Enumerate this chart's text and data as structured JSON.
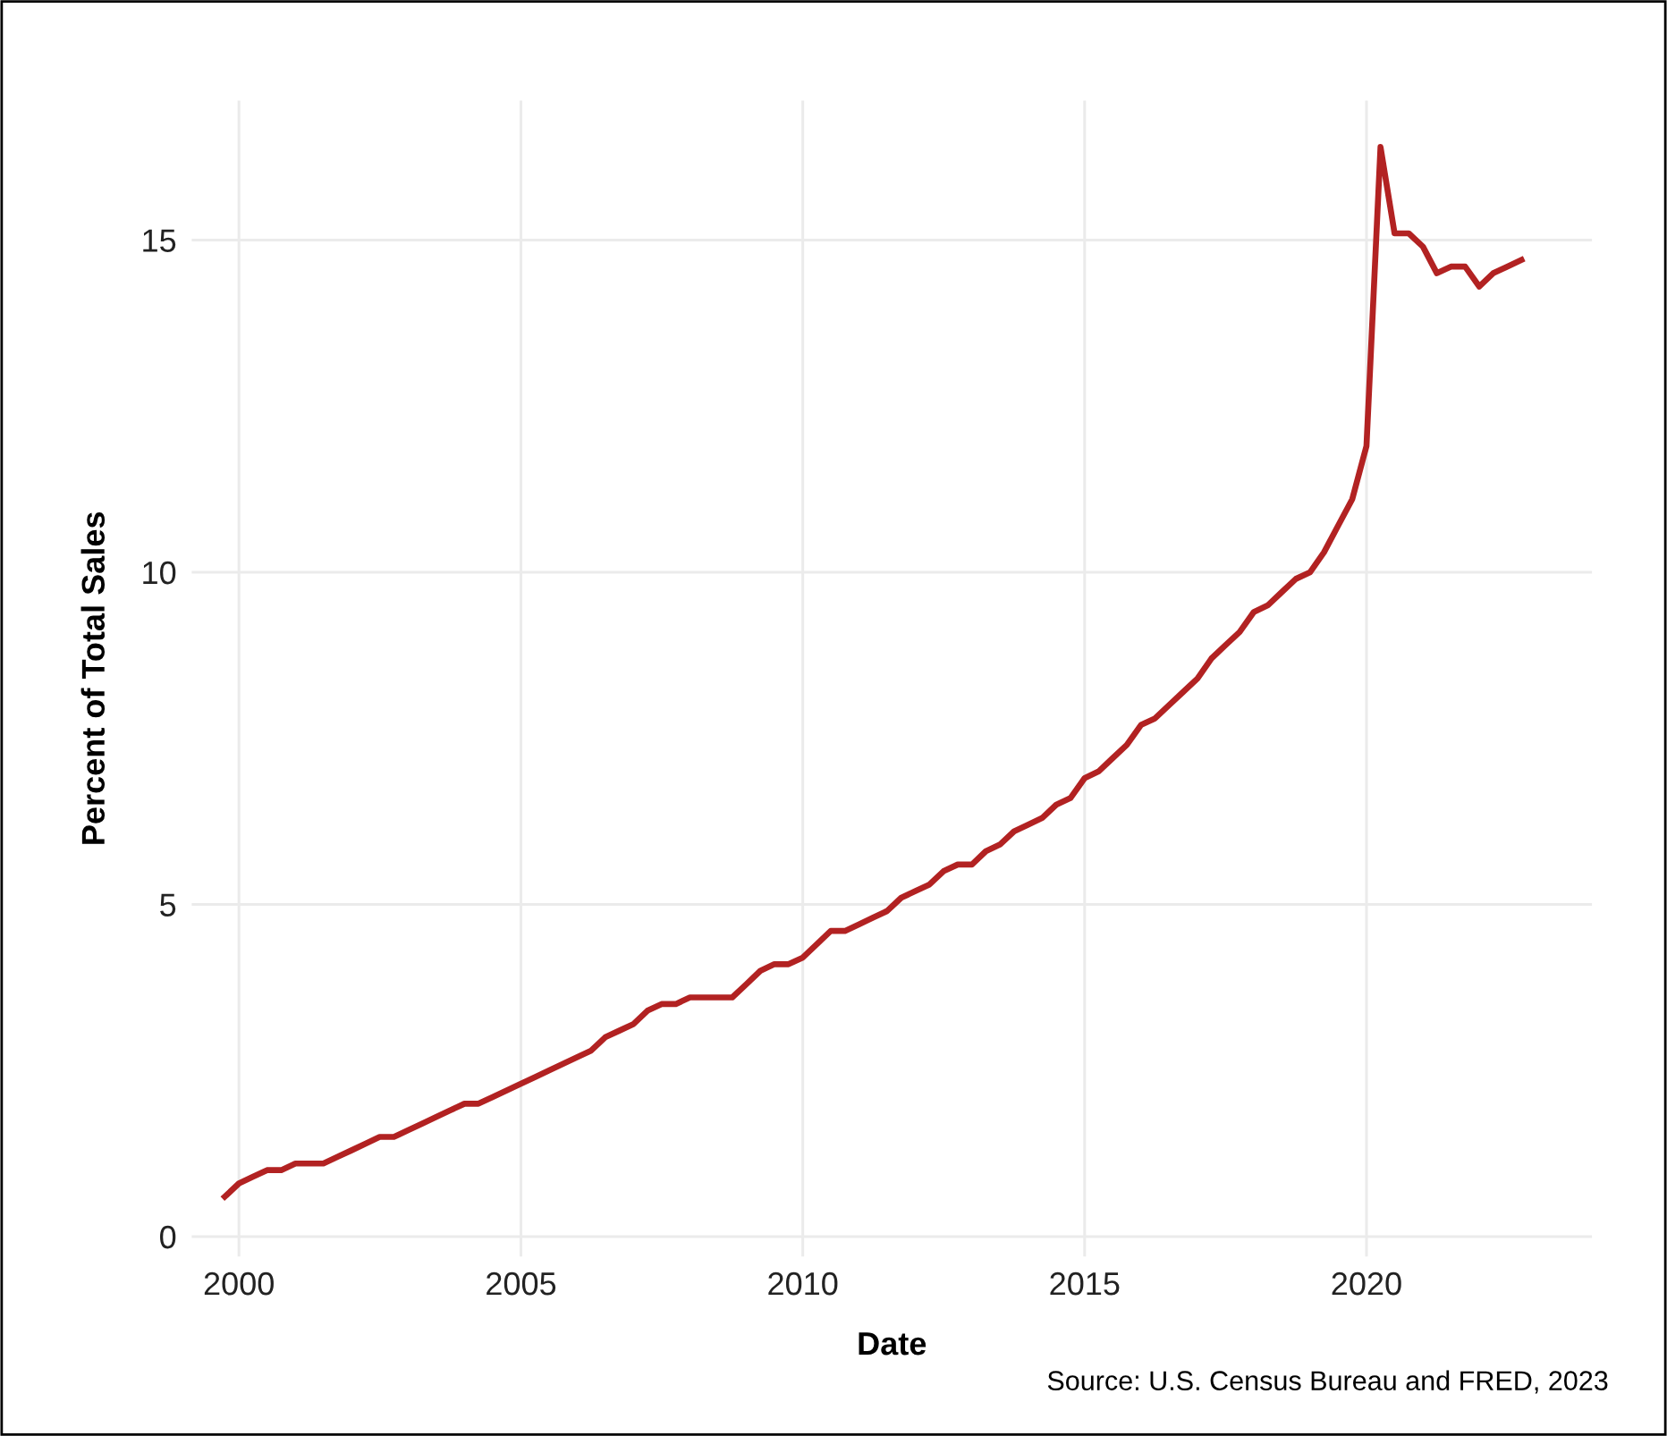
{
  "chart_data": {
    "type": "line",
    "xlabel": "Date",
    "ylabel": "Percent of Total Sales",
    "annotations": [
      "Source: U.S. Census Bureau and FRED, 2023"
    ],
    "x": [
      "1999-10",
      "2000-01",
      "2000-04",
      "2000-07",
      "2000-10",
      "2001-01",
      "2001-04",
      "2001-07",
      "2001-10",
      "2002-01",
      "2002-04",
      "2002-07",
      "2002-10",
      "2003-01",
      "2003-04",
      "2003-07",
      "2003-10",
      "2004-01",
      "2004-04",
      "2004-07",
      "2004-10",
      "2005-01",
      "2005-04",
      "2005-07",
      "2005-10",
      "2006-01",
      "2006-04",
      "2006-07",
      "2006-10",
      "2007-01",
      "2007-04",
      "2007-07",
      "2007-10",
      "2008-01",
      "2008-04",
      "2008-07",
      "2008-10",
      "2009-01",
      "2009-04",
      "2009-07",
      "2009-10",
      "2010-01",
      "2010-04",
      "2010-07",
      "2010-10",
      "2011-01",
      "2011-04",
      "2011-07",
      "2011-10",
      "2012-01",
      "2012-04",
      "2012-07",
      "2012-10",
      "2013-01",
      "2013-04",
      "2013-07",
      "2013-10",
      "2014-01",
      "2014-04",
      "2014-07",
      "2014-10",
      "2015-01",
      "2015-04",
      "2015-07",
      "2015-10",
      "2016-01",
      "2016-04",
      "2016-07",
      "2016-10",
      "2017-01",
      "2017-04",
      "2017-07",
      "2017-10",
      "2018-01",
      "2018-04",
      "2018-07",
      "2018-10",
      "2019-01",
      "2019-04",
      "2019-07",
      "2019-10",
      "2020-01",
      "2020-04",
      "2020-07",
      "2020-10",
      "2021-01",
      "2021-04",
      "2021-07",
      "2021-10",
      "2022-01",
      "2022-04",
      "2022-07",
      "2022-10"
    ],
    "series": [
      {
        "color": "#b22222",
        "values": [
          0.6,
          0.8,
          0.9,
          1.0,
          1.0,
          1.1,
          1.1,
          1.1,
          1.2,
          1.3,
          1.4,
          1.5,
          1.5,
          1.6,
          1.7,
          1.8,
          1.9,
          2.0,
          2.0,
          2.1,
          2.2,
          2.3,
          2.4,
          2.5,
          2.6,
          2.7,
          2.8,
          3.0,
          3.1,
          3.2,
          3.4,
          3.5,
          3.5,
          3.6,
          3.6,
          3.6,
          3.6,
          3.8,
          4.0,
          4.1,
          4.1,
          4.2,
          4.4,
          4.6,
          4.6,
          4.7,
          4.8,
          4.9,
          5.1,
          5.2,
          5.3,
          5.5,
          5.6,
          5.6,
          5.8,
          5.9,
          6.1,
          6.2,
          6.3,
          6.5,
          6.6,
          6.9,
          7.0,
          7.2,
          7.4,
          7.7,
          7.8,
          8.0,
          8.2,
          8.4,
          8.7,
          8.9,
          9.1,
          9.4,
          9.5,
          9.7,
          9.9,
          10.0,
          10.3,
          10.7,
          11.1,
          11.9,
          16.4,
          15.1,
          15.1,
          14.9,
          14.5,
          14.6,
          14.6,
          14.3,
          14.5,
          14.6,
          14.7
        ]
      }
    ],
    "xlim": [
      "1999-03",
      "2024-01"
    ],
    "xticks": [
      {
        "value": "2000-01",
        "label": "2000"
      },
      {
        "value": "2005-01",
        "label": "2005"
      },
      {
        "value": "2010-01",
        "label": "2010"
      },
      {
        "value": "2015-01",
        "label": "2015"
      },
      {
        "value": "2020-01",
        "label": "2020"
      }
    ],
    "ylim": [
      -0.3,
      17.1
    ],
    "yticks": [
      0,
      5,
      10,
      15
    ],
    "grid": true,
    "line_style": "solid",
    "marker": "none"
  }
}
